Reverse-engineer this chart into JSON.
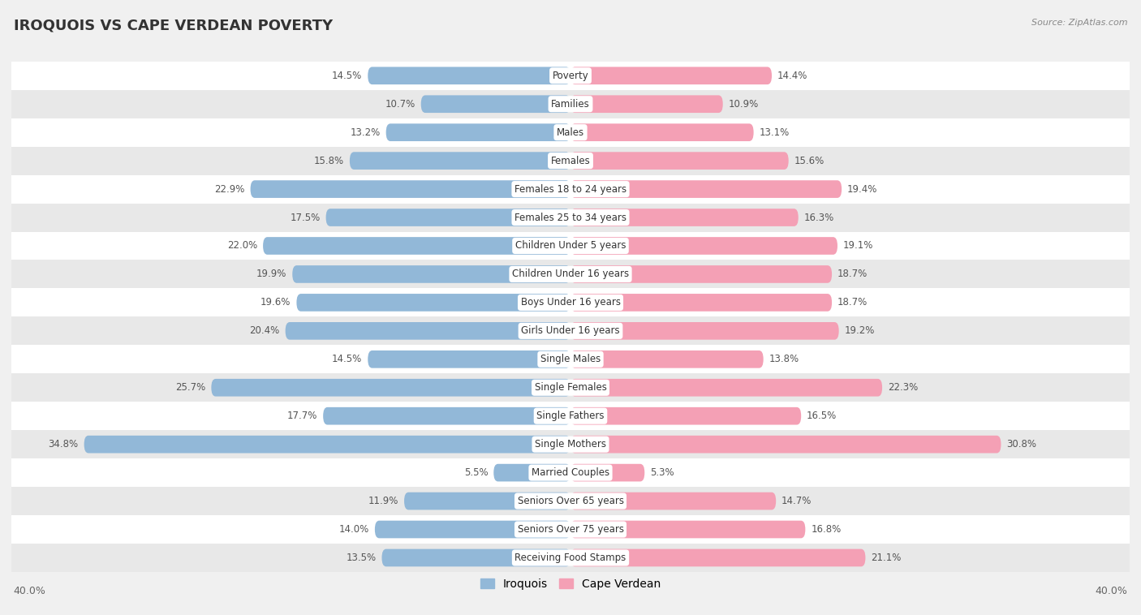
{
  "title": "IROQUOIS VS CAPE VERDEAN POVERTY",
  "source": "Source: ZipAtlas.com",
  "categories": [
    "Poverty",
    "Families",
    "Males",
    "Females",
    "Females 18 to 24 years",
    "Females 25 to 34 years",
    "Children Under 5 years",
    "Children Under 16 years",
    "Boys Under 16 years",
    "Girls Under 16 years",
    "Single Males",
    "Single Females",
    "Single Fathers",
    "Single Mothers",
    "Married Couples",
    "Seniors Over 65 years",
    "Seniors Over 75 years",
    "Receiving Food Stamps"
  ],
  "iroquois": [
    14.5,
    10.7,
    13.2,
    15.8,
    22.9,
    17.5,
    22.0,
    19.9,
    19.6,
    20.4,
    14.5,
    25.7,
    17.7,
    34.8,
    5.5,
    11.9,
    14.0,
    13.5
  ],
  "cape_verdean": [
    14.4,
    10.9,
    13.1,
    15.6,
    19.4,
    16.3,
    19.1,
    18.7,
    18.7,
    19.2,
    13.8,
    22.3,
    16.5,
    30.8,
    5.3,
    14.7,
    16.8,
    21.1
  ],
  "iroquois_color": "#92b8d8",
  "cape_verdean_color": "#f4a0b5",
  "background_color": "#f0f0f0",
  "row_color_even": "#ffffff",
  "row_color_odd": "#e8e8e8",
  "axis_max": 40.0,
  "bar_height": 0.62,
  "legend_iroquois": "Iroquois",
  "legend_cape_verdean": "Cape Verdean"
}
